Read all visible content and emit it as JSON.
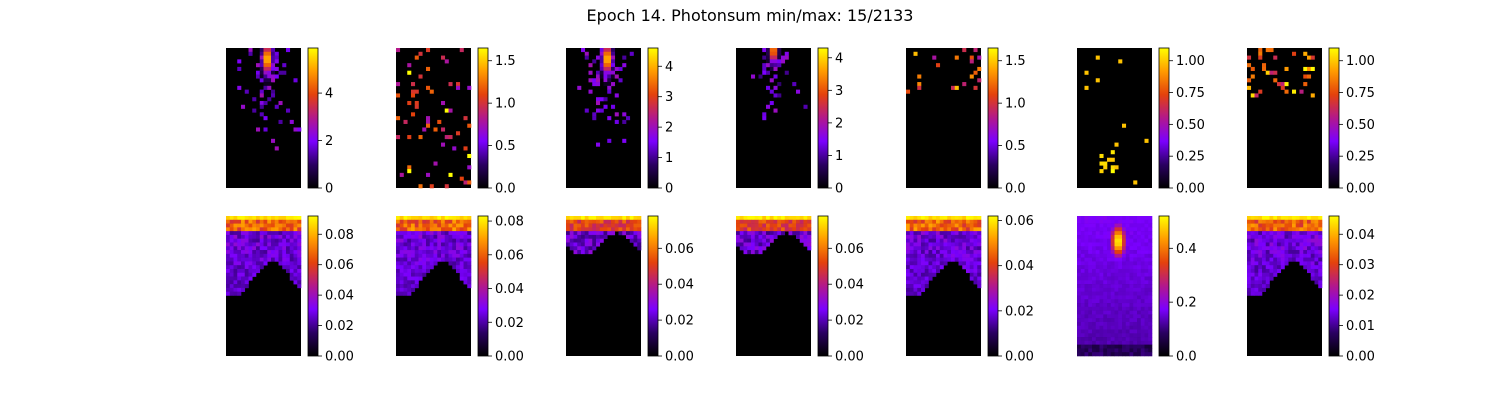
{
  "title": "Epoch 14. Photonsum min/max: 15/2133",
  "chart_data": {
    "type": "heatmap",
    "colormap": "gnuplot",
    "colormap_stops": [
      "#000000",
      "#2a0062",
      "#7b00ff",
      "#b2188c",
      "#e4410c",
      "#ff9b00",
      "#ffff00"
    ],
    "grid": false,
    "rows": [
      [
        {
          "pattern": "hotspot-top",
          "vmax": 5.9,
          "colorbar_ticks": [
            "0",
            "2",
            "4"
          ]
        },
        {
          "pattern": "sparse-red",
          "vmax": 1.65,
          "colorbar_ticks": [
            "0.0",
            "0.5",
            "1.0",
            "1.5"
          ]
        },
        {
          "pattern": "hotspot-top",
          "vmax": 4.6,
          "colorbar_ticks": [
            "0",
            "1",
            "2",
            "3",
            "4"
          ]
        },
        {
          "pattern": "hotspot-top-faint",
          "vmax": 4.3,
          "colorbar_ticks": [
            "0",
            "1",
            "2",
            "3",
            "4"
          ]
        },
        {
          "pattern": "sparse-top",
          "vmax": 1.65,
          "colorbar_ticks": [
            "0.0",
            "0.5",
            "1.0",
            "1.5"
          ]
        },
        {
          "pattern": "sparse-bottom-yellow",
          "vmax": 1.1,
          "colorbar_ticks": [
            "0.00",
            "0.25",
            "0.50",
            "0.75",
            "1.00"
          ]
        },
        {
          "pattern": "sparse-top-red",
          "vmax": 1.1,
          "colorbar_ticks": [
            "0.00",
            "0.25",
            "0.50",
            "0.75",
            "1.00"
          ]
        }
      ],
      [
        {
          "pattern": "band-deep",
          "vmax": 0.092,
          "colorbar_ticks": [
            "0.00",
            "0.02",
            "0.04",
            "0.06",
            "0.08"
          ]
        },
        {
          "pattern": "band-deep",
          "vmax": 0.083,
          "colorbar_ticks": [
            "0.00",
            "0.02",
            "0.04",
            "0.06",
            "0.08"
          ]
        },
        {
          "pattern": "band-thin",
          "vmax": 0.078,
          "colorbar_ticks": [
            "0.00",
            "0.02",
            "0.04",
            "0.06"
          ]
        },
        {
          "pattern": "band-thin",
          "vmax": 0.078,
          "colorbar_ticks": [
            "0.00",
            "0.02",
            "0.04",
            "0.06"
          ]
        },
        {
          "pattern": "band-deep",
          "vmax": 0.062,
          "colorbar_ticks": [
            "0.00",
            "0.02",
            "0.04",
            "0.06"
          ]
        },
        {
          "pattern": "blob-full",
          "vmax": 0.52,
          "colorbar_ticks": [
            "0.0",
            "0.2",
            "0.4"
          ]
        },
        {
          "pattern": "band-deep",
          "vmax": 0.046,
          "colorbar_ticks": [
            "0.00",
            "0.01",
            "0.02",
            "0.03",
            "0.04"
          ]
        }
      ]
    ]
  }
}
